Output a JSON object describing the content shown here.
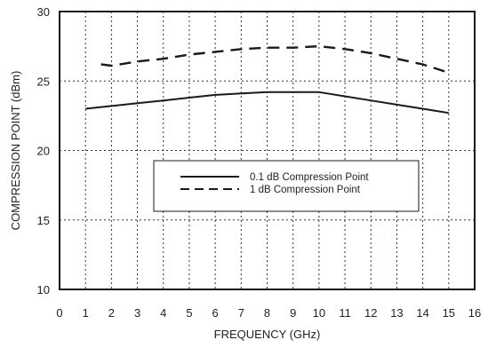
{
  "chart_data": {
    "type": "line",
    "xlabel": "FREQUENCY (GHz)",
    "ylabel": "COMPRESSION POINT (dBm)",
    "xlim": [
      0,
      16
    ],
    "ylim": [
      10,
      30
    ],
    "xticks": [
      "0",
      "1",
      "2",
      "3",
      "4",
      "5",
      "6",
      "7",
      "8",
      "9",
      "10",
      "11",
      "12",
      "13",
      "14",
      "15",
      "16"
    ],
    "yticks": [
      "10",
      "15",
      "20",
      "25",
      "30"
    ],
    "grid": true,
    "legend_position": "center",
    "series": [
      {
        "name": "0.1 dB Compression Point",
        "style": "solid",
        "color": "#1a1a1a",
        "x": [
          1,
          2,
          3,
          4,
          5,
          6,
          7,
          8,
          9,
          10,
          11,
          12,
          13,
          14,
          15
        ],
        "y": [
          23.0,
          23.2,
          23.4,
          23.6,
          23.8,
          24.0,
          24.1,
          24.2,
          24.2,
          24.2,
          23.9,
          23.6,
          23.3,
          23.0,
          22.7
        ]
      },
      {
        "name": "1 dB Compression Point",
        "style": "dashed",
        "color": "#1a1a1a",
        "x": [
          1.6,
          2,
          3,
          4,
          5,
          6,
          7,
          8,
          9,
          10,
          11,
          12,
          13,
          14,
          15
        ],
        "y": [
          26.2,
          26.1,
          26.4,
          26.6,
          26.9,
          27.1,
          27.3,
          27.4,
          27.4,
          27.5,
          27.3,
          27.0,
          26.6,
          26.2,
          25.6
        ]
      }
    ]
  }
}
